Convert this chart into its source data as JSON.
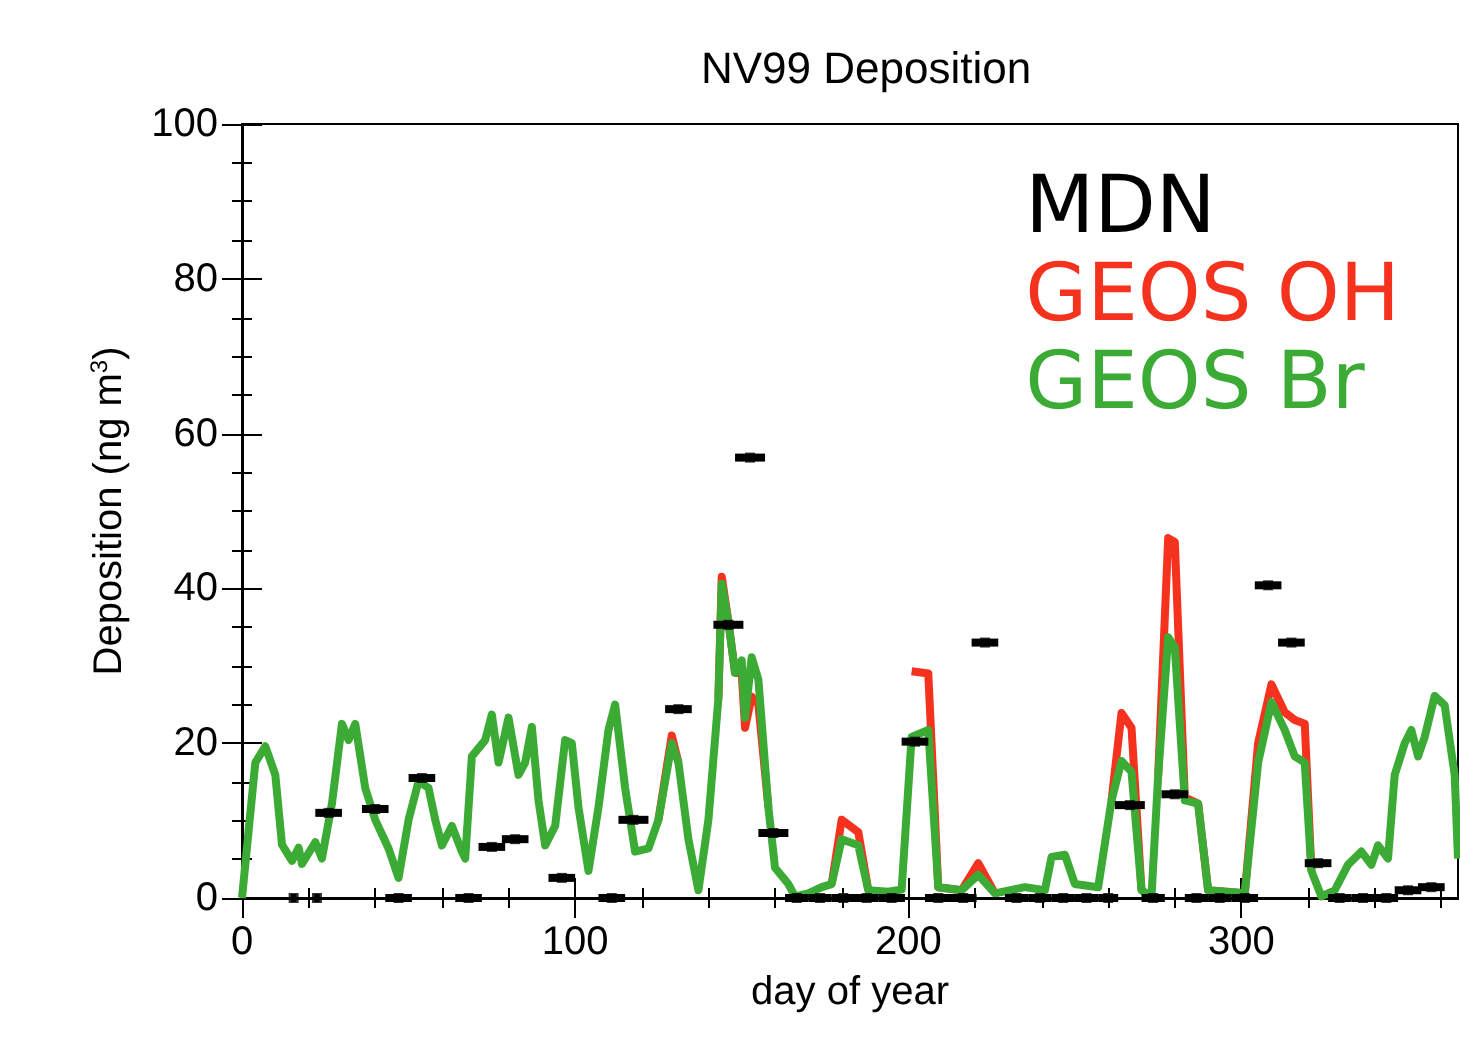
{
  "chart_data": {
    "type": "line",
    "title": "NV99 Deposition",
    "xlabel": "day of year",
    "ylabel": "Deposition (ng m$^{3}$)",
    "xlim": [
      0,
      365
    ],
    "ylim": [
      0,
      100
    ],
    "xticks": [
      0,
      100,
      200,
      300
    ],
    "yticks": [
      0,
      20,
      40,
      60,
      80,
      100
    ],
    "grid": false,
    "legend": "top right",
    "marker": "none",
    "line_style": "solid",
    "x": [
      0,
      4,
      7,
      10,
      12,
      15,
      17,
      18,
      22,
      24,
      27,
      30,
      32,
      34,
      37,
      40,
      44,
      47,
      50,
      53,
      56,
      58,
      60,
      63,
      66,
      67,
      69,
      73,
      75,
      77,
      80,
      83,
      85,
      87,
      89,
      91,
      94,
      97,
      99,
      101,
      104,
      107,
      110,
      112,
      115,
      118,
      122,
      125,
      129,
      131,
      134,
      137,
      140,
      143,
      144,
      146,
      148,
      150,
      151,
      153,
      155,
      158,
      160,
      164,
      166,
      170,
      174,
      177,
      180,
      185,
      188,
      194,
      198,
      201,
      206,
      209,
      216,
      221,
      226,
      235,
      241,
      243,
      247,
      250,
      257,
      261,
      264,
      267,
      270,
      273,
      275,
      278,
      280,
      283,
      287,
      290,
      301,
      305,
      309,
      313,
      316,
      319,
      321,
      324,
      328,
      332,
      336,
      339,
      341,
      344,
      346,
      349,
      351,
      353,
      355,
      358,
      361,
      364,
      365
    ],
    "series": [
      {
        "name": "MDN",
        "color": "#000000",
        "type": "scatter",
        "marker": "square",
        "x": [
          15.5,
          22.5,
          26,
          40,
          47,
          54,
          68,
          75,
          82,
          96,
          111,
          117.5,
          131,
          146,
          152.5,
          159.5,
          166.5,
          173.5,
          180.5,
          187.5,
          195,
          202,
          209,
          216.5,
          223,
          232.5,
          239.5,
          246.5,
          253.5,
          260,
          266.5,
          273.5,
          280,
          286.5,
          293.5,
          301,
          308,
          315,
          323,
          329.5,
          336.5,
          343.5,
          350,
          357
        ],
        "values": [
          0,
          0,
          11,
          11.5,
          0,
          15.5,
          0,
          6.6,
          7.6,
          2.6,
          0,
          10.1,
          24.4,
          35.3,
          56.9,
          8.4,
          0,
          0,
          0,
          0,
          0,
          20.2,
          0,
          0,
          33,
          0,
          0,
          0,
          0,
          0,
          12,
          0,
          13.4,
          0,
          0,
          0,
          40.4,
          33,
          4.5,
          0,
          0,
          0,
          1,
          1.4
        ],
        "xerrors": [
          0.8,
          0.8,
          4,
          4,
          4,
          4,
          4,
          4,
          4,
          4,
          4,
          4.5,
          4,
          4.5,
          4.5,
          4.5,
          3.5,
          3.5,
          3.5,
          3.5,
          4,
          4,
          4,
          4,
          4,
          3.5,
          3.5,
          3.5,
          3.5,
          3,
          4.5,
          3.5,
          4,
          3.5,
          3.5,
          4,
          4,
          4,
          4,
          3.5,
          3.5,
          3.5,
          4,
          4
        ]
      },
      {
        "name": "GEOS OH",
        "color": "#f5321e",
        "values": [
          null,
          null,
          null,
          null,
          null,
          null,
          null,
          null,
          null,
          null,
          null,
          null,
          null,
          null,
          null,
          null,
          null,
          null,
          null,
          null,
          null,
          null,
          null,
          null,
          null,
          null,
          null,
          null,
          null,
          null,
          null,
          null,
          null,
          null,
          null,
          null,
          null,
          null,
          null,
          null,
          null,
          null,
          null,
          null,
          null,
          null,
          null,
          10.1,
          21,
          17.5,
          null,
          null,
          null,
          25.8,
          41.5,
          35.7,
          29.1,
          29,
          22,
          26,
          25,
          11.7,
          null,
          null,
          null,
          null,
          null,
          1.8,
          10.1,
          8.5,
          1,
          null,
          null,
          29.3,
          29,
          1.4,
          1,
          4.5,
          0.6,
          null,
          null,
          null,
          null,
          null,
          null,
          12.6,
          23.9,
          22,
          1,
          null,
          15.8,
          46.5,
          46,
          13,
          12.2,
          1,
          0.6,
          20,
          27.6,
          24,
          23,
          22.5,
          3.5,
          null,
          null,
          null,
          null,
          null,
          null,
          null,
          null,
          null,
          null,
          null,
          null,
          null,
          null,
          null,
          null
        ]
      },
      {
        "name": "GEOS Br",
        "color": "#3cab35",
        "values": [
          0,
          17.5,
          19.6,
          15.9,
          6.9,
          4.8,
          6.5,
          4.4,
          7.2,
          5.1,
          12.2,
          22.5,
          20.4,
          22.5,
          14.2,
          10.1,
          6.4,
          2.6,
          10.1,
          15.1,
          14.2,
          10.1,
          6.8,
          9.3,
          6,
          5.1,
          18.3,
          20.4,
          23.7,
          17.5,
          23.3,
          15.9,
          17.5,
          22.1,
          12.6,
          6.8,
          9.3,
          20.4,
          20,
          11.7,
          3.5,
          11.7,
          21.7,
          25,
          14.2,
          6,
          6.4,
          10.1,
          20,
          17.5,
          7.6,
          1,
          10.1,
          25.8,
          40.6,
          35.7,
          29.1,
          30.7,
          23.3,
          31.1,
          28.2,
          11.7,
          3.9,
          1.8,
          0.2,
          0.6,
          1.4,
          1.8,
          7.6,
          6.8,
          1,
          0.8,
          1.1,
          20.8,
          21.7,
          1.4,
          1,
          3,
          0.6,
          1.4,
          1,
          5.3,
          5.6,
          1.8,
          1.4,
          12.6,
          17.7,
          16.3,
          1,
          0.2,
          15.8,
          33.7,
          32.4,
          12.6,
          12.2,
          1,
          0.6,
          17.5,
          25.3,
          21.7,
          18.3,
          17.5,
          3.5,
          0.2,
          1,
          4.3,
          6,
          4.3,
          6.8,
          5.1,
          15.9,
          20,
          21.7,
          18.3,
          20.8,
          26.1,
          24.9,
          15.9,
          5.1
        ]
      }
    ]
  }
}
